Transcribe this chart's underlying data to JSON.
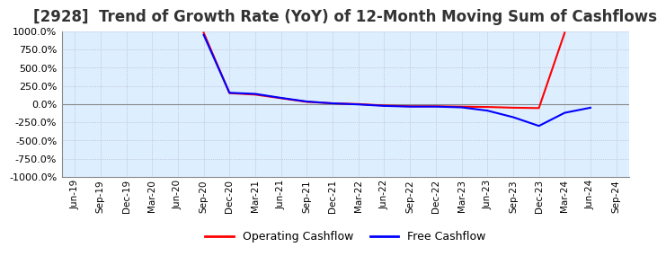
{
  "title": "[2928]  Trend of Growth Rate (YoY) of 12-Month Moving Sum of Cashflows",
  "title_fontsize": 12,
  "ylim": [
    -1000,
    1000
  ],
  "yticks": [
    -1000,
    -750,
    -500,
    -250,
    0,
    250,
    500,
    750,
    1000
  ],
  "background_color": "#ffffff",
  "plot_bg_color": "#ddeeff",
  "grid_color": "#aaaacc",
  "x_labels": [
    "Jun-19",
    "Sep-19",
    "Dec-19",
    "Mar-20",
    "Jun-20",
    "Sep-20",
    "Dec-20",
    "Mar-21",
    "Jun-21",
    "Sep-21",
    "Dec-21",
    "Mar-22",
    "Jun-22",
    "Sep-22",
    "Dec-22",
    "Mar-23",
    "Jun-23",
    "Sep-23",
    "Dec-23",
    "Mar-24",
    "Jun-24",
    "Sep-24"
  ],
  "op_color": "#ff0000",
  "free_color": "#0000ff",
  "line_width": 1.5,
  "legend_labels": [
    "Operating Cashflow",
    "Free Cashflow"
  ],
  "op_cf_y": [
    null,
    null,
    null,
    null,
    null,
    980,
    150,
    130,
    80,
    30,
    10,
    0,
    -20,
    -30,
    -30,
    -35,
    -40,
    -50,
    -55,
    980,
    null,
    null
  ],
  "free_cf_y": [
    null,
    null,
    null,
    null,
    null,
    950,
    155,
    140,
    85,
    35,
    10,
    -5,
    -25,
    -35,
    -35,
    -45,
    -90,
    -180,
    -300,
    -120,
    -50,
    null
  ]
}
